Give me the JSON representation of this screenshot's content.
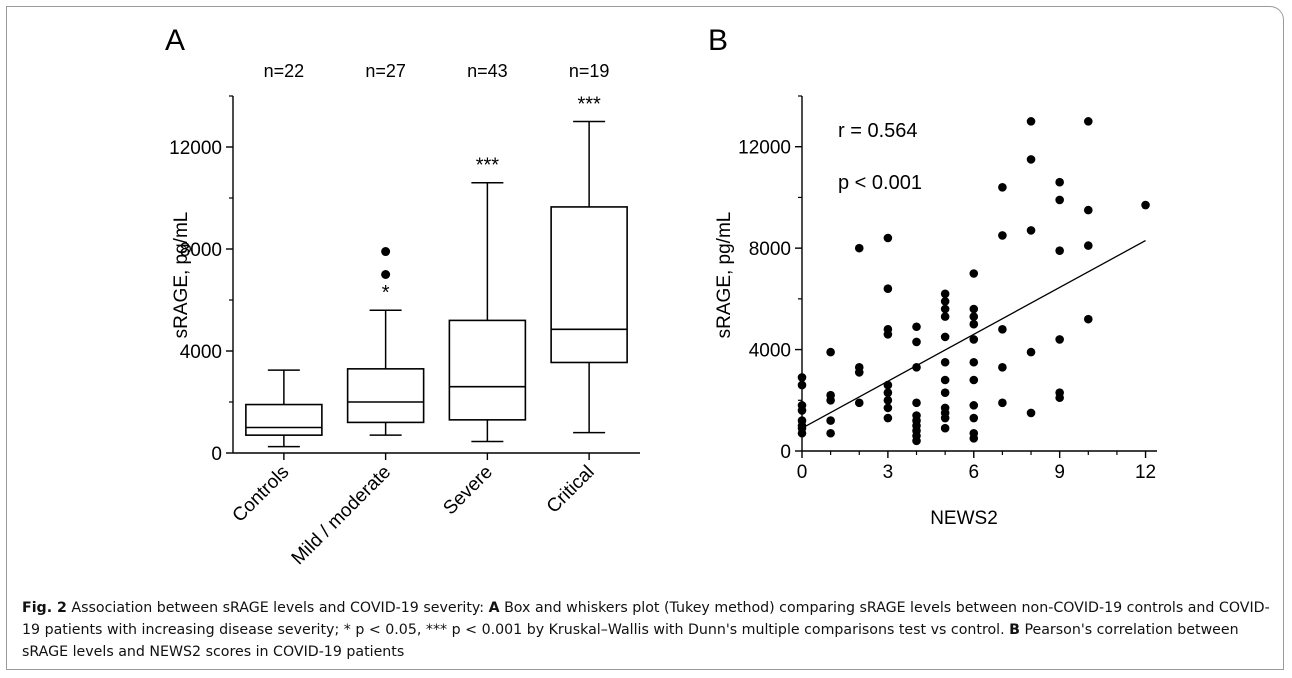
{
  "chart_data": [
    {
      "type": "box",
      "panel_label": "A",
      "ylabel": "sRAGE, pg/mL",
      "ylim": [
        0,
        14000
      ],
      "yticks": [
        0,
        4000,
        8000,
        12000
      ],
      "categories": [
        "Controls",
        "Mild / moderate",
        "Severe",
        "Critical"
      ],
      "n_labels": [
        "n=22",
        "n=27",
        "n=43",
        "n=19"
      ],
      "significance": [
        "",
        "*",
        "***",
        "***"
      ],
      "boxes": [
        {
          "whisker_low": 250,
          "q1": 700,
          "median": 1000,
          "q3": 1900,
          "whisker_high": 3250,
          "outliers": []
        },
        {
          "whisker_low": 700,
          "q1": 1200,
          "median": 2000,
          "q3": 3300,
          "whisker_high": 5600,
          "outliers": [
            7000,
            7900
          ]
        },
        {
          "whisker_low": 450,
          "q1": 1300,
          "median": 2600,
          "q3": 5200,
          "whisker_high": 10600,
          "outliers": []
        },
        {
          "whisker_low": 800,
          "q1": 3550,
          "median": 4850,
          "q3": 9650,
          "whisker_high": 13000,
          "outliers": []
        }
      ]
    },
    {
      "type": "scatter",
      "panel_label": "B",
      "xlabel": "NEWS2",
      "ylabel": "sRAGE, pg/mL",
      "xlim": [
        0,
        12.4
      ],
      "ylim": [
        0,
        14000
      ],
      "xticks": [
        0,
        3,
        6,
        9,
        12
      ],
      "yticks": [
        0,
        4000,
        8000,
        12000
      ],
      "annotations": [
        "r = 0.564",
        "p < 0.001"
      ],
      "regression": {
        "x": [
          0,
          12
        ],
        "y": [
          900,
          8300
        ]
      },
      "points": [
        [
          0,
          2900
        ],
        [
          0,
          2600
        ],
        [
          0,
          1800
        ],
        [
          0,
          1600
        ],
        [
          0,
          1200
        ],
        [
          0,
          1000
        ],
        [
          0,
          900
        ],
        [
          0,
          700
        ],
        [
          1,
          3900
        ],
        [
          1,
          2200
        ],
        [
          1,
          2000
        ],
        [
          1,
          1200
        ],
        [
          1,
          700
        ],
        [
          2,
          8000
        ],
        [
          2,
          3300
        ],
        [
          2,
          3100
        ],
        [
          2,
          1900
        ],
        [
          3,
          8400
        ],
        [
          3,
          6400
        ],
        [
          3,
          4800
        ],
        [
          3,
          4600
        ],
        [
          3,
          2600
        ],
        [
          3,
          2300
        ],
        [
          3,
          2000
        ],
        [
          3,
          1700
        ],
        [
          3,
          1300
        ],
        [
          4,
          4900
        ],
        [
          4,
          4300
        ],
        [
          4,
          3300
        ],
        [
          4,
          1900
        ],
        [
          4,
          1400
        ],
        [
          4,
          1200
        ],
        [
          4,
          1000
        ],
        [
          4,
          800
        ],
        [
          4,
          600
        ],
        [
          4,
          400
        ],
        [
          5,
          6200
        ],
        [
          5,
          5900
        ],
        [
          5,
          5600
        ],
        [
          5,
          5300
        ],
        [
          5,
          4500
        ],
        [
          5,
          3500
        ],
        [
          5,
          2800
        ],
        [
          5,
          2300
        ],
        [
          5,
          1700
        ],
        [
          5,
          1500
        ],
        [
          5,
          1300
        ],
        [
          5,
          900
        ],
        [
          6,
          7000
        ],
        [
          6,
          5600
        ],
        [
          6,
          5300
        ],
        [
          6,
          5000
        ],
        [
          6,
          4400
        ],
        [
          6,
          3500
        ],
        [
          6,
          2800
        ],
        [
          6,
          1800
        ],
        [
          6,
          1300
        ],
        [
          6,
          700
        ],
        [
          6,
          500
        ],
        [
          7,
          10400
        ],
        [
          7,
          8500
        ],
        [
          7,
          4800
        ],
        [
          7,
          3300
        ],
        [
          7,
          1900
        ],
        [
          8,
          13000
        ],
        [
          8,
          11500
        ],
        [
          8,
          8700
        ],
        [
          8,
          3900
        ],
        [
          8,
          1500
        ],
        [
          9,
          10600
        ],
        [
          9,
          9900
        ],
        [
          9,
          7900
        ],
        [
          9,
          4400
        ],
        [
          9,
          2300
        ],
        [
          9,
          2100
        ],
        [
          10,
          13000
        ],
        [
          10,
          9500
        ],
        [
          10,
          8100
        ],
        [
          10,
          5200
        ],
        [
          12,
          9700
        ]
      ]
    }
  ],
  "caption": {
    "fig_label": "Fig. 2",
    "part1": "  Association between sRAGE levels and COVID-19 severity: ",
    "a_label": "A",
    "part2": " Box and whiskers plot (Tukey method) comparing sRAGE levels between non-COVID-19 controls and COVID-19 patients with increasing disease severity; * p < 0.05, *** p < 0.001 by Kruskal–Wallis with Dunn's multiple comparisons test vs control. ",
    "b_label": "B",
    "part3": " Pearson's correlation between sRAGE levels and NEWS2 scores in COVID-19 patients"
  }
}
